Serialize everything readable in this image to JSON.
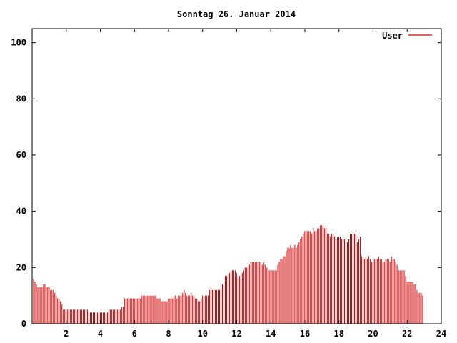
{
  "chart_data": {
    "type": "bar",
    "title": "Sonntag 26. Januar 2014",
    "xlabel": "",
    "ylabel": "",
    "xlim": [
      0,
      24
    ],
    "ylim": [
      0,
      105
    ],
    "x_ticks": [
      "2",
      "4",
      "6",
      "8",
      "10",
      "12",
      "14",
      "16",
      "18",
      "20",
      "22",
      "24"
    ],
    "x_tick_values": [
      2,
      4,
      6,
      8,
      10,
      12,
      14,
      16,
      18,
      20,
      22,
      24
    ],
    "y_ticks": [
      "0",
      "20",
      "40",
      "60",
      "80",
      "100"
    ],
    "y_tick_values": [
      0,
      20,
      40,
      60,
      80,
      100
    ],
    "grid": false,
    "legend_position": "top-right",
    "series_color": "#cc0000",
    "series": [
      {
        "name": "User",
        "x_step_hours": 0.0833,
        "values": [
          16,
          16,
          15,
          14,
          13,
          13,
          13,
          13,
          14,
          14,
          13,
          13,
          13,
          12,
          12,
          12,
          11,
          10,
          9,
          9,
          8,
          7,
          5,
          5,
          5,
          5,
          5,
          5,
          5,
          5,
          5,
          5,
          5,
          5,
          5,
          5,
          5,
          5,
          5,
          5,
          4,
          4,
          4,
          4,
          4,
          4,
          4,
          4,
          4,
          4,
          4,
          4,
          4,
          4,
          5,
          5,
          5,
          5,
          5,
          5,
          5,
          5,
          5,
          6,
          6,
          9,
          9,
          9,
          9,
          9,
          9,
          9,
          9,
          9,
          9,
          9,
          9,
          10,
          10,
          10,
          10,
          10,
          10,
          10,
          10,
          10,
          10,
          10,
          9,
          9,
          9,
          8,
          8,
          8,
          8,
          8,
          9,
          9,
          9,
          9,
          10,
          10,
          9,
          10,
          10,
          10,
          11,
          12,
          11,
          10,
          10,
          10,
          11,
          10,
          10,
          9,
          9,
          8,
          8,
          9,
          10,
          10,
          10,
          10,
          10,
          12,
          13,
          12,
          12,
          12,
          12,
          12,
          12,
          13,
          14,
          14,
          17,
          17,
          18,
          18,
          19,
          19,
          19,
          19,
          18,
          17,
          17,
          17,
          18,
          19,
          20,
          20,
          20,
          21,
          22,
          22,
          22,
          22,
          22,
          22,
          22,
          22,
          21,
          22,
          21,
          20,
          20,
          19,
          19,
          19,
          19,
          19,
          19,
          21,
          22,
          23,
          23,
          24,
          24,
          26,
          27,
          27,
          28,
          27,
          27,
          28,
          27,
          28,
          29,
          30,
          31,
          32,
          33,
          33,
          33,
          33,
          33,
          32,
          34,
          33,
          33,
          34,
          34,
          35,
          35,
          34,
          34,
          34,
          32,
          32,
          31,
          32,
          32,
          31,
          30,
          31,
          31,
          31,
          30,
          30,
          30,
          30,
          29,
          30,
          32,
          32,
          32,
          32,
          32,
          29,
          30,
          31,
          24,
          23,
          23,
          24,
          23,
          24,
          23,
          22,
          22,
          23,
          23,
          23,
          24,
          23,
          23,
          22,
          22,
          23,
          23,
          23,
          22,
          24,
          23,
          23,
          22,
          21,
          19,
          19,
          19,
          19,
          19,
          17,
          15,
          15,
          15,
          15,
          15,
          14,
          14,
          12,
          11,
          11,
          11,
          10
        ]
      }
    ]
  }
}
